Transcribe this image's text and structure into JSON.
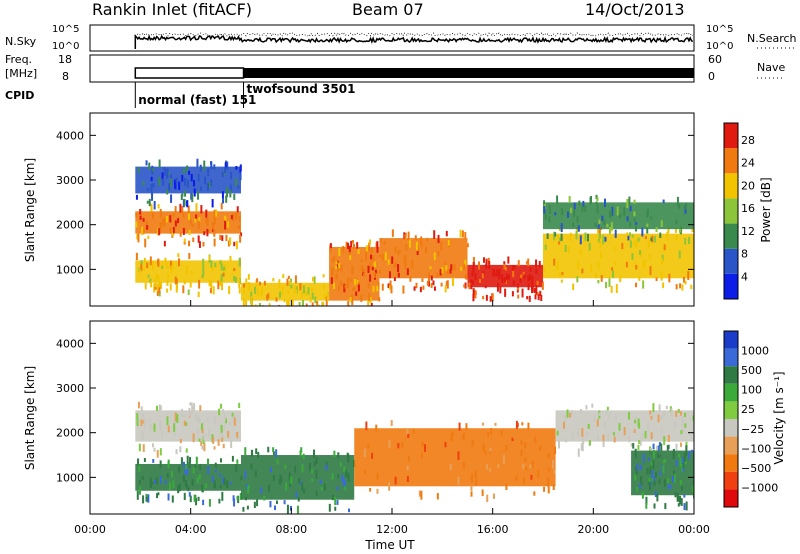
{
  "header": {
    "title": "Rankin Inlet (fitACF)",
    "beam": "Beam 07",
    "date": "14/Oct/2013"
  },
  "noise_panel": {
    "left_label": "N.Sky",
    "left_ticks": [
      "10^5",
      "10^0"
    ],
    "right_ticks": [
      "10^5",
      "10^0"
    ],
    "right_label": "N.Search"
  },
  "freq_panel": {
    "left_label_top": "Freq.",
    "left_label_bottom": "[MHz]",
    "left_ticks": [
      "18",
      "8"
    ],
    "right_ticks": [
      "60",
      "0"
    ],
    "right_label": "Nave"
  },
  "cpid": {
    "label": "CPID",
    "modes": [
      {
        "name": "normal (fast) 151",
        "start_hour": 1.8
      },
      {
        "name": "twofsound 3501",
        "start_hour": 6.1
      }
    ]
  },
  "chart_data": [
    {
      "type": "heatmap",
      "panel": "power",
      "ylabel": "Slant Range [km]",
      "yticks": [
        1000,
        2000,
        3000,
        4000
      ],
      "ylim": [
        180,
        4500
      ],
      "colorbar": {
        "label": "Power [dB]",
        "ticks": [
          4,
          8,
          12,
          16,
          20,
          24,
          28
        ],
        "range": [
          0,
          31
        ]
      },
      "colors": [
        "#0d1de8",
        "#2a55c8",
        "#3a8a4e",
        "#8cc43a",
        "#f2c400",
        "#f07a10",
        "#e01a10"
      ],
      "bands": [
        {
          "start_hour": 1.8,
          "end_hour": 6.0,
          "range_low": 1800,
          "range_high": 2300,
          "level": 24
        },
        {
          "start_hour": 1.8,
          "end_hour": 6.0,
          "range_low": 700,
          "range_high": 1200,
          "level": 20
        },
        {
          "start_hour": 1.8,
          "end_hour": 6.0,
          "range_low": 2700,
          "range_high": 3300,
          "level": 8
        },
        {
          "start_hour": 6.0,
          "end_hour": 9.5,
          "range_low": 300,
          "range_high": 700,
          "level": 22
        },
        {
          "start_hour": 9.5,
          "end_hour": 11.5,
          "range_low": 300,
          "range_high": 1500,
          "level": 26
        },
        {
          "start_hour": 11.5,
          "end_hour": 15.0,
          "range_low": 800,
          "range_high": 1700,
          "level": 24
        },
        {
          "start_hour": 15.0,
          "end_hour": 18.0,
          "range_low": 600,
          "range_high": 1100,
          "level": 28
        },
        {
          "start_hour": 18.0,
          "end_hour": 24.0,
          "range_low": 800,
          "range_high": 1800,
          "level": 20
        },
        {
          "start_hour": 18.0,
          "end_hour": 24.0,
          "range_low": 1900,
          "range_high": 2500,
          "level": 12
        }
      ]
    },
    {
      "type": "heatmap",
      "panel": "velocity",
      "ylabel": "Slant Range [km]",
      "yticks": [
        1000,
        2000,
        3000,
        4000
      ],
      "ylim": [
        180,
        4500
      ],
      "xlabel": "Time UT",
      "xticks": [
        "00:00",
        "04:00",
        "08:00",
        "12:00",
        "16:00",
        "20:00",
        "00:00"
      ],
      "xlim": [
        0,
        24
      ],
      "colorbar": {
        "label": "Velocity [m s⁻¹]",
        "ticks": [
          "1000",
          "500",
          "100",
          "25",
          "−25",
          "−100",
          "−500",
          "−1000"
        ]
      },
      "colors": [
        "#1a3cc8",
        "#3a6ad8",
        "#2f7a45",
        "#3aaa3a",
        "#80cc40",
        "#c8c8c0",
        "#e8a058",
        "#f07a10",
        "#f04010",
        "#e00a0a"
      ],
      "bands": [
        {
          "start_hour": 1.8,
          "end_hour": 6.0,
          "range_low": 1800,
          "range_high": 2500,
          "level": "-25"
        },
        {
          "start_hour": 1.8,
          "end_hour": 6.0,
          "range_low": 700,
          "range_high": 1300,
          "level": "100"
        },
        {
          "start_hour": 6.0,
          "end_hour": 10.5,
          "range_low": 500,
          "range_high": 1500,
          "level": "100"
        },
        {
          "start_hour": 10.5,
          "end_hour": 18.5,
          "range_low": 800,
          "range_high": 2100,
          "level": "-100"
        },
        {
          "start_hour": 18.5,
          "end_hour": 24.0,
          "range_low": 1800,
          "range_high": 2500,
          "level": "-25"
        },
        {
          "start_hour": 21.5,
          "end_hour": 24.0,
          "range_low": 600,
          "range_high": 1600,
          "level": "100"
        }
      ]
    }
  ]
}
